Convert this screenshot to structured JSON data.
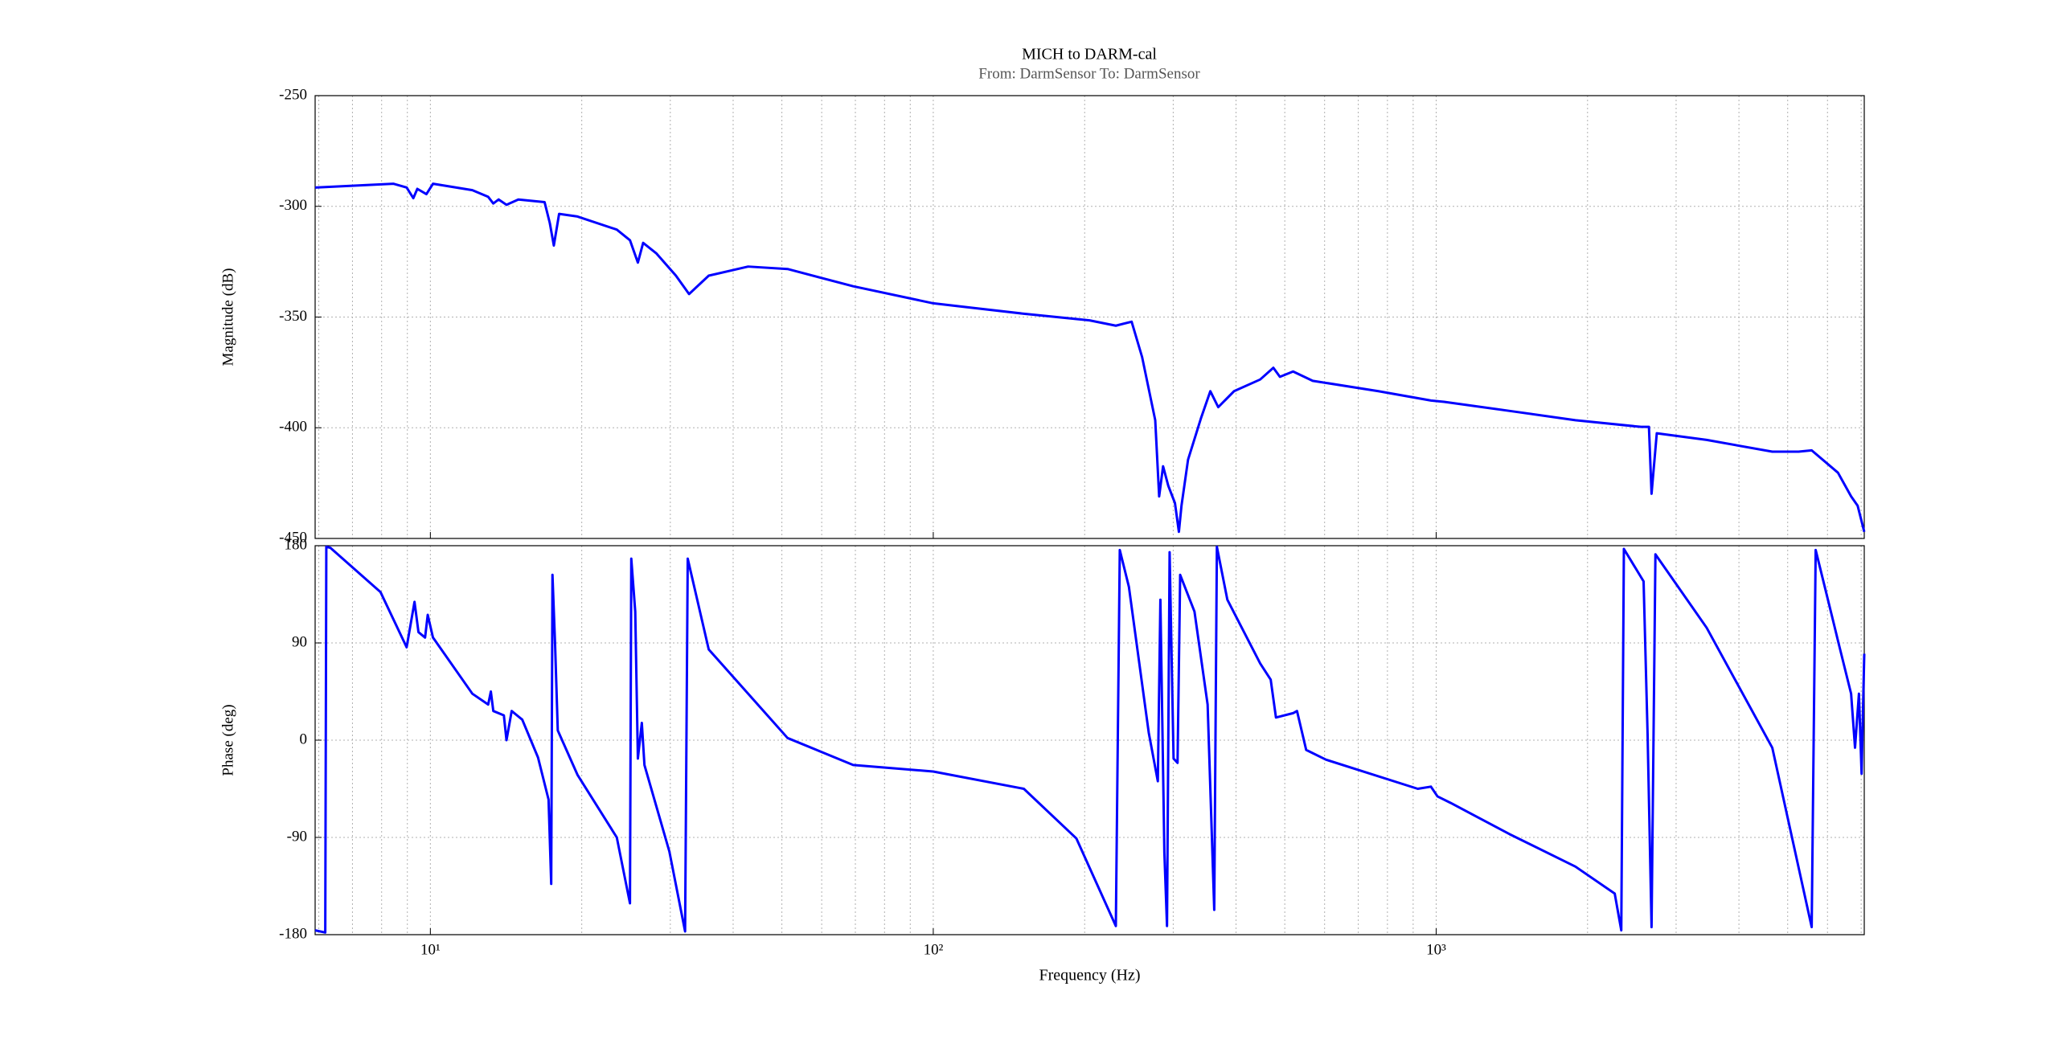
{
  "chart_data": [
    {
      "type": "line",
      "title": "MICH to DARM-cal",
      "subtitle": "From: DarmSensor  To: DarmSensor",
      "ylabel": "Magnitude (dB)",
      "log_x": true,
      "grid": true,
      "xlim": [
        5.9,
        7100
      ],
      "ylim": [
        -450,
        -250
      ],
      "yticks": [
        -450,
        -400,
        -350,
        -300,
        -250
      ],
      "xticks": [
        {
          "value": 10,
          "label": "10¹"
        },
        {
          "value": 100,
          "label": "10²"
        },
        {
          "value": 1000,
          "label": "10³"
        }
      ],
      "xminorticks": [
        6,
        7,
        8,
        9,
        20,
        30,
        40,
        50,
        60,
        70,
        80,
        90,
        200,
        300,
        400,
        500,
        600,
        700,
        800,
        900,
        2000,
        3000,
        4000,
        5000,
        6000,
        7000
      ],
      "x": [
        5.9,
        8.45,
        8.97,
        9.25,
        9.42,
        9.82,
        10.12,
        12.12,
        13.03,
        13.34,
        13.67,
        14.17,
        14.96,
        16.87,
        17.28,
        17.6,
        18.03,
        19.61,
        23.48,
        24.94,
        25.86,
        26.49,
        28.13,
        30.78,
        32.69,
        35.77,
        42.84,
        51.32,
        69.3,
        100,
        151.4,
        204.5,
        230.7,
        248,
        260.2,
        276.3,
        281.3,
        286.4,
        293.4,
        302.4,
        307.9,
        311.6,
        321.1,
        341,
        355.6,
        368.7,
        396.3,
        446.8,
        474.5,
        489,
        519.4,
        568.3,
        767.7,
        976.3,
        1037,
        1400,
        1892,
        2555,
        2649,
        2681,
        2746,
        3451,
        4660,
        5256,
        5581,
        6295,
        6685,
        6888,
        7100
      ],
      "series": [
        {
          "color": "#0000ff",
          "values": [
            -291.5,
            -289.8,
            -291.5,
            -296.3,
            -292.1,
            -294.5,
            -289.8,
            -292.7,
            -295.7,
            -298.7,
            -296.9,
            -299.3,
            -296.9,
            -298.1,
            -307.6,
            -317.7,
            -303.4,
            -304.6,
            -310.5,
            -315.3,
            -325.4,
            -316.5,
            -321.2,
            -331.3,
            -339.6,
            -331.3,
            -327.2,
            -328.3,
            -336.1,
            -343.8,
            -348.5,
            -351.5,
            -353.9,
            -352.1,
            -368.1,
            -396.6,
            -431,
            -417.4,
            -426.3,
            -434,
            -447,
            -435.2,
            -414.4,
            -395.4,
            -383.5,
            -390.7,
            -383.5,
            -378.2,
            -372.9,
            -377,
            -374.6,
            -378.8,
            -383.5,
            -387.7,
            -388.3,
            -392.4,
            -396.6,
            -399.6,
            -399.6,
            -429.8,
            -402.5,
            -405.5,
            -410.8,
            -410.8,
            -410.2,
            -420.3,
            -431,
            -435.2,
            -447
          ]
        }
      ]
    },
    {
      "type": "line",
      "ylabel": "Phase (deg)",
      "xlabel": "Frequency  (Hz)",
      "log_x": true,
      "grid": true,
      "xlim": [
        5.9,
        7100
      ],
      "ylim": [
        -180,
        180
      ],
      "yticks": [
        -180,
        -90,
        0,
        90,
        180
      ],
      "xticks": [
        {
          "value": 10,
          "label": "10¹"
        },
        {
          "value": 100,
          "label": "10²"
        },
        {
          "value": 1000,
          "label": "10³"
        }
      ],
      "xminorticks": [
        6,
        7,
        8,
        9,
        20,
        30,
        40,
        50,
        60,
        70,
        80,
        90,
        200,
        300,
        400,
        500,
        600,
        700,
        800,
        900,
        2000,
        3000,
        4000,
        5000,
        6000,
        7000
      ],
      "x": [
        5.9,
        6.18,
        6.21,
        6.33,
        7.96,
        8.97,
        9.3,
        9.47,
        9.76,
        9.88,
        10.12,
        12.12,
        13.03,
        13.19,
        13.34,
        14.0,
        14.17,
        14.51,
        15.23,
        16.37,
        17.18,
        17.39,
        17.49,
        17.7,
        17.92,
        19.61,
        23.48,
        24.94,
        25.09,
        25.55,
        25.86,
        26.33,
        26.65,
        29.87,
        32.1,
        32.49,
        35.77,
        51.32,
        69.3,
        100,
        151.4,
        192.6,
        230.7,
        234.9,
        244.9,
        268.2,
        279.6,
        282.9,
        288.1,
        291.6,
        295.1,
        300.5,
        306.0,
        309.7,
        330.7,
        351.2,
        362.0,
        366.4,
        384.4,
        446.8,
        468.8,
        480.2,
        519.4,
        528.8,
        551.5,
        603.5,
        919.1,
        976.3,
        1006,
        1068,
        1400,
        1892,
        2265,
        2334,
        2362,
        2585,
        2633,
        2681,
        2729,
        3451,
        4660,
        5581,
        5684,
        6108,
        6295,
        6685,
        6806,
        6929,
        7014,
        7100
      ],
      "series": [
        {
          "color": "#0000ff",
          "values": [
            -176,
            -178,
            179,
            178,
            137,
            86,
            128,
            100,
            95,
            116,
            95,
            43,
            33,
            45,
            27,
            23,
            0,
            27,
            19,
            -16,
            -55,
            -133,
            153,
            89,
            9,
            -32,
            -90,
            -151,
            168,
            119,
            -17,
            16,
            -23,
            -103,
            -177,
            168,
            84,
            2,
            -23,
            -29,
            -45,
            -91,
            -172,
            176,
            142,
            7,
            -38,
            130,
            -104,
            -172,
            174,
            -17,
            -21,
            153,
            119,
            33,
            -157,
            179,
            130,
            71,
            56,
            21,
            25,
            27,
            -9,
            -18,
            -45,
            -43,
            -52,
            -58,
            -87,
            -117,
            -142,
            -176,
            177,
            147,
            5,
            -173,
            172,
            104,
            -7,
            -173,
            176,
            117,
            92,
            43,
            -7,
            43,
            -31,
            80
          ]
        }
      ]
    }
  ]
}
